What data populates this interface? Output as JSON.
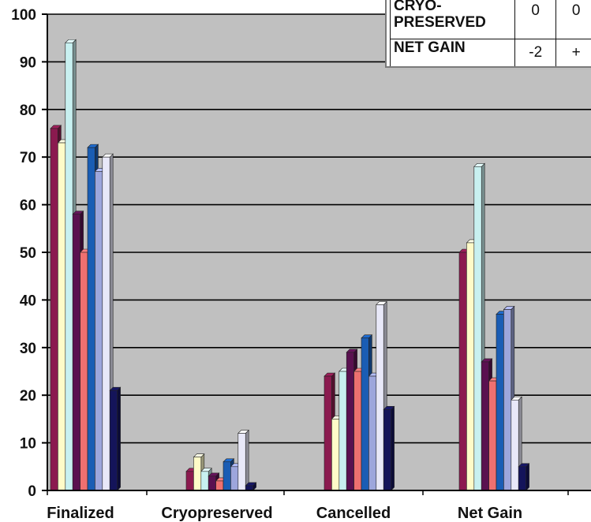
{
  "chart_data": {
    "type": "bar",
    "categories": [
      "Finalized",
      "Cryopreserved",
      "Cancelled",
      "Net Gain"
    ],
    "ylim": [
      0,
      100
    ],
    "yticks": [
      0,
      10,
      20,
      30,
      40,
      50,
      60,
      70,
      80,
      90,
      100
    ],
    "grid": true,
    "series": [
      {
        "color": "#8b1a4f",
        "values": [
          76,
          4,
          24,
          50
        ]
      },
      {
        "color": "#fffbc8",
        "values": [
          73,
          7,
          15,
          52
        ]
      },
      {
        "color": "#c8f0f0",
        "values": [
          94,
          4,
          25,
          68
        ]
      },
      {
        "color": "#5a1150",
        "values": [
          58,
          3,
          29,
          27
        ]
      },
      {
        "color": "#ee7070",
        "values": [
          50,
          2,
          25,
          23
        ]
      },
      {
        "color": "#1a5db4",
        "values": [
          72,
          6,
          32,
          37
        ]
      },
      {
        "color": "#9da6dc",
        "values": [
          67,
          5,
          24,
          38
        ]
      },
      {
        "color": "#e8e8f8",
        "values": [
          70,
          12,
          39,
          19
        ]
      },
      {
        "color": "#14145a",
        "values": [
          21,
          1,
          17,
          5
        ]
      }
    ],
    "table": {
      "rows": [
        {
          "label": "CRYO-\nPRESERVED",
          "values": [
            "0",
            "0"
          ]
        },
        {
          "label": "NET GAIN",
          "values": [
            "-2",
            "+"
          ]
        }
      ]
    }
  },
  "colors": {
    "plot_background": "#c0c0c0",
    "gridline": "#000000"
  }
}
